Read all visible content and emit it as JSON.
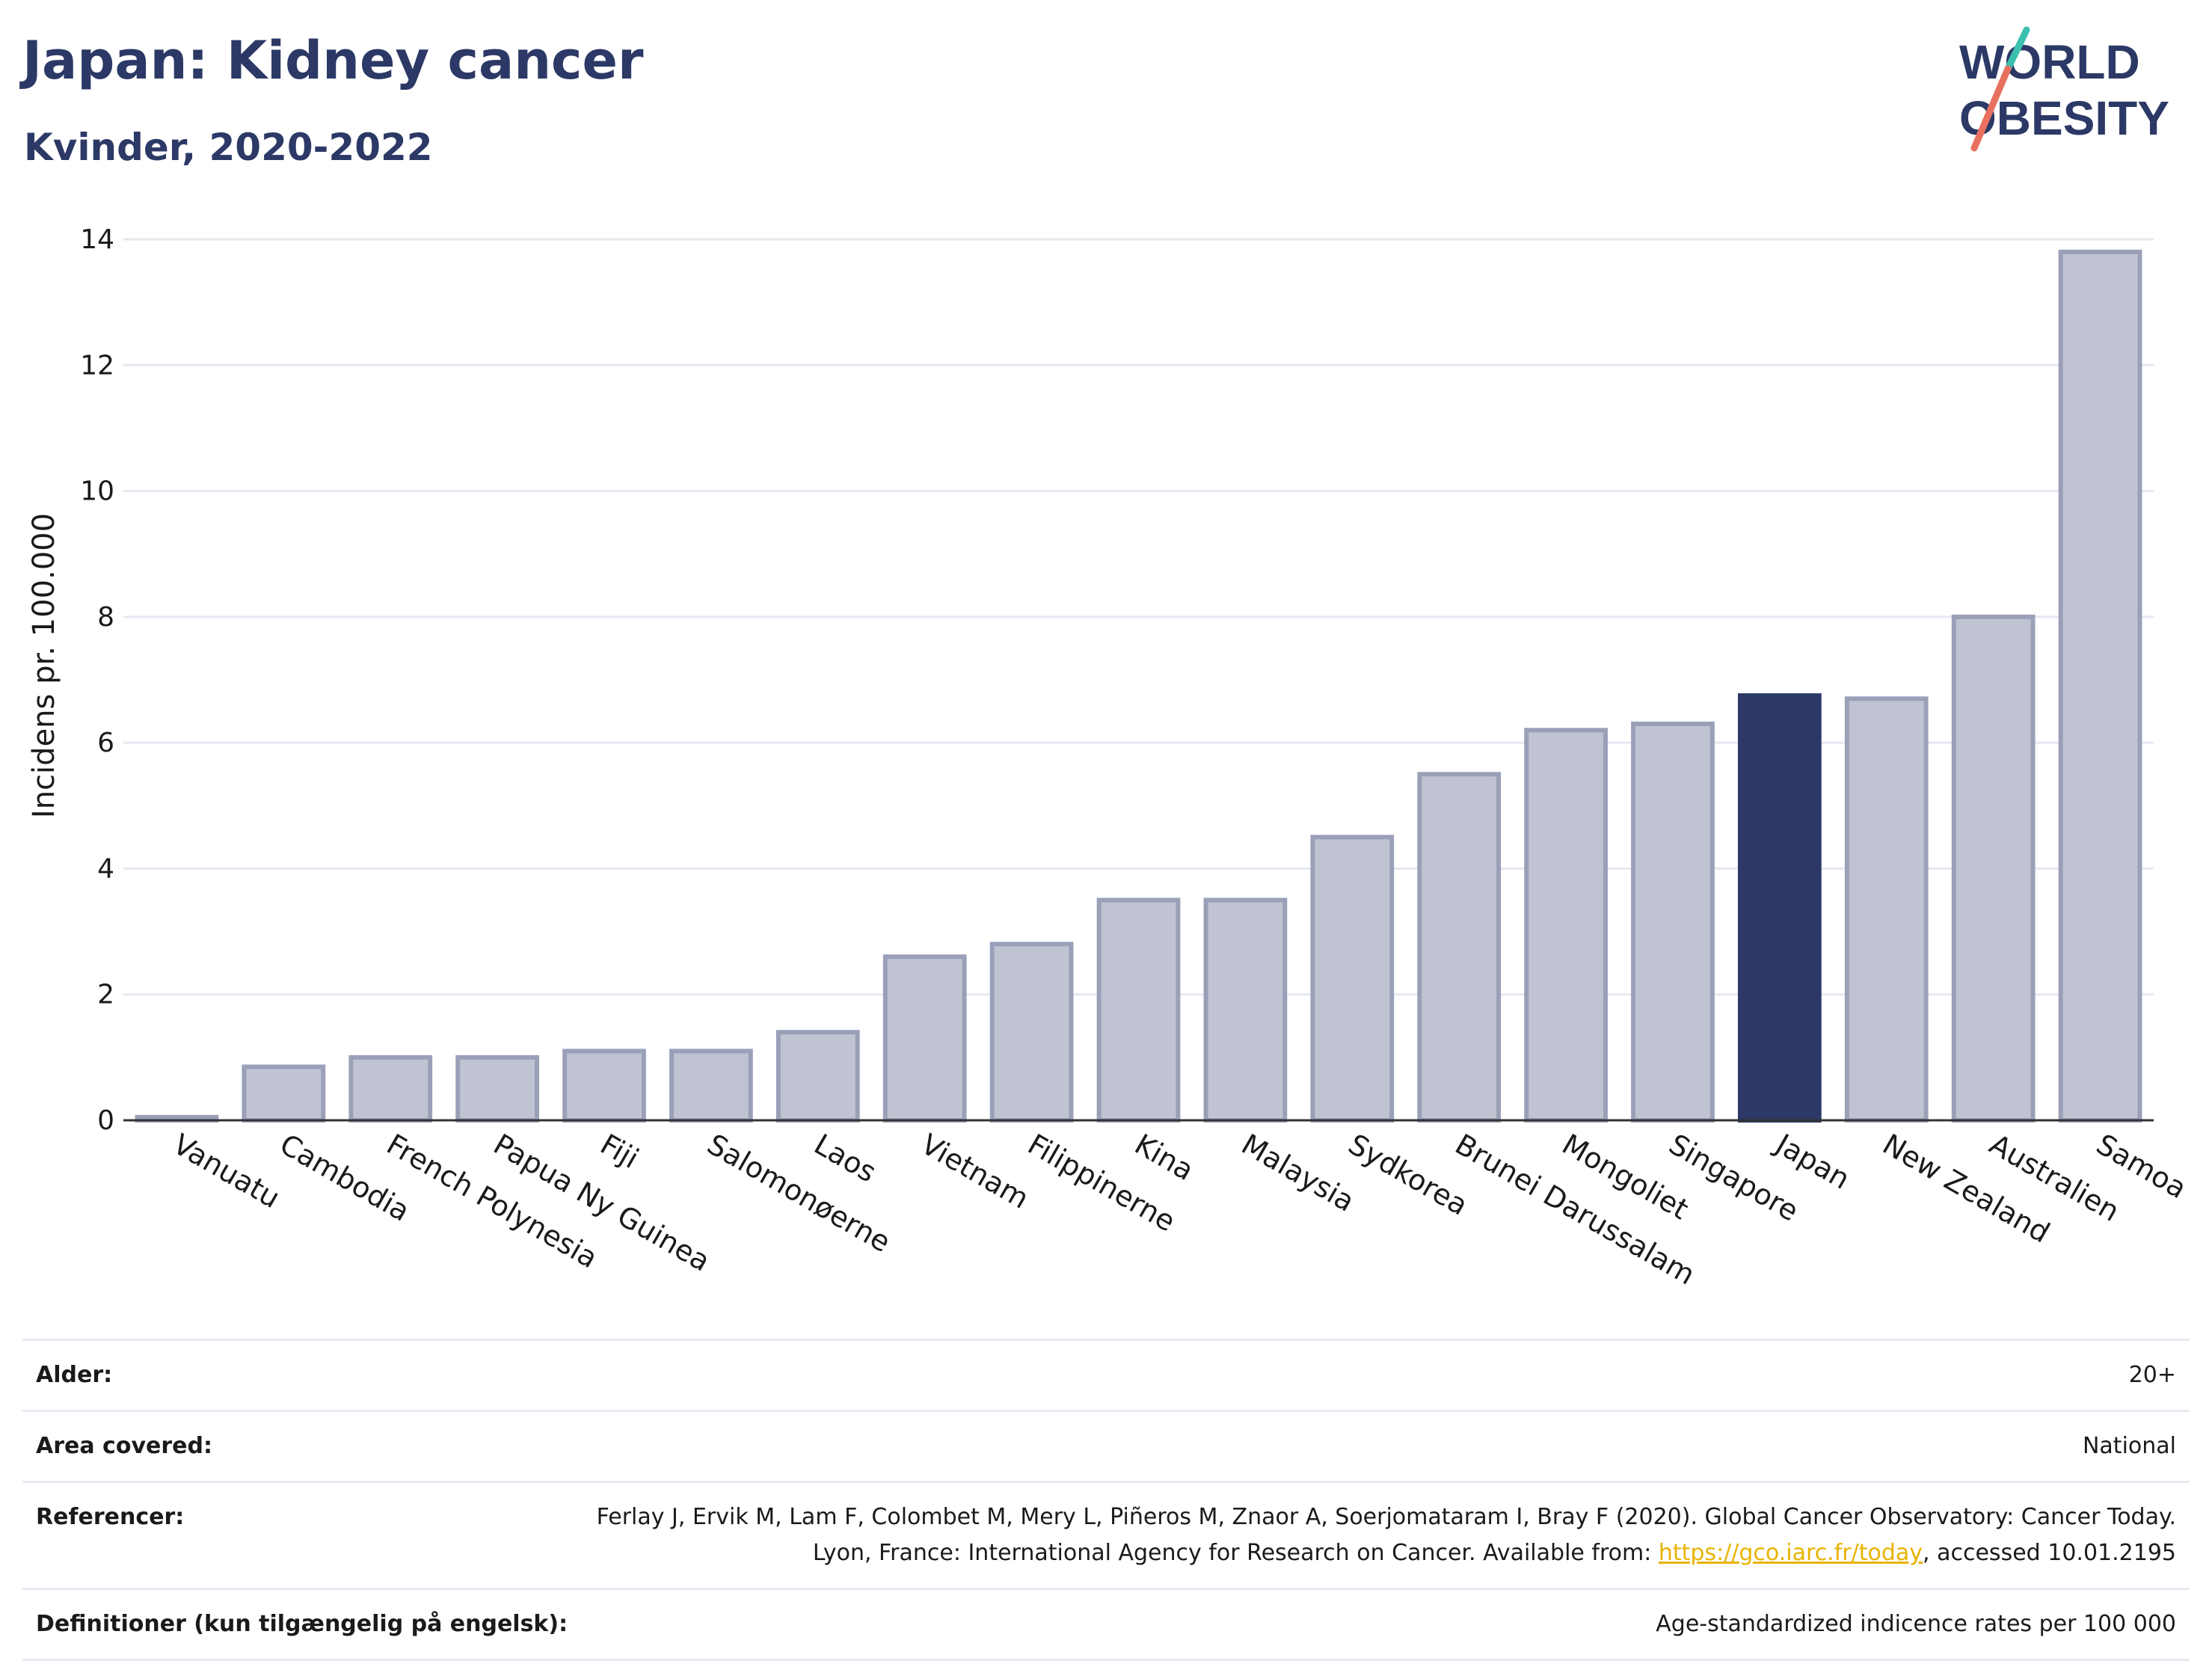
{
  "header": {
    "title": "Japan: Kidney cancer",
    "subtitle": "Kvinder, 2020-2022",
    "logo_line1": "WORLD",
    "logo_line2": "OBESITY"
  },
  "chart_data": {
    "type": "bar",
    "title": "Japan: Kidney cancer",
    "subtitle": "Kvinder, 2020-2022",
    "ylabel": "Incidens pr. 100.000",
    "xlabel": "",
    "ylim": [
      0,
      14
    ],
    "yticks": [
      0,
      2,
      4,
      6,
      8,
      10,
      12,
      14
    ],
    "grid": true,
    "categories": [
      "Vanuatu",
      "Cambodia",
      "French Polynesia",
      "Papua Ny Guinea",
      "Fiji",
      "Salomonøerne",
      "Laos",
      "Vietnam",
      "Filippinerne",
      "Kina",
      "Malaysia",
      "Sydkorea",
      "Brunei Darussalam",
      "Mongoliet",
      "Singapore",
      "Japan",
      "New Zealand",
      "Australien",
      "Samoa"
    ],
    "values": [
      0.05,
      0.85,
      1.0,
      1.0,
      1.1,
      1.1,
      1.4,
      2.6,
      2.8,
      3.5,
      3.5,
      4.5,
      5.5,
      6.2,
      6.3,
      6.75,
      6.7,
      8.0,
      13.8
    ],
    "highlight": "Japan",
    "colors": {
      "bar": "#c0c4d2",
      "bar_border": "#9aa0b8",
      "highlight": "#2c3966",
      "grid": "#e6e8f0",
      "axis": "#333333"
    }
  },
  "meta": {
    "rows": [
      {
        "key": "Alder:",
        "value": "20+"
      },
      {
        "key": "Area covered:",
        "value": "National"
      },
      {
        "key": "Referencer:",
        "value": "Ferlay J, Ervik M, Lam F, Colombet M, Mery L, Piñeros M, Znaor A, Soerjomataram I, Bray F (2020). Global Cancer Observatory: Cancer Today. Lyon, France: International Agency for Research on Cancer. Available from: ",
        "link": "https://gco.iarc.fr/today",
        "suffix": ", accessed 10.01.2195"
      },
      {
        "key": "Definitioner (kun tilgængelig på engelsk):",
        "value": "Age-standardized indicence rates per 100 000"
      }
    ]
  }
}
